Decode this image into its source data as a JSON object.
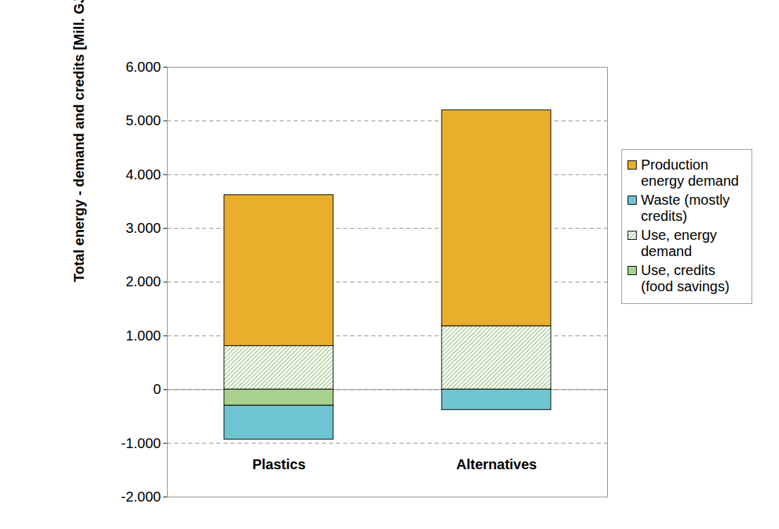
{
  "chart_data": {
    "type": "bar",
    "stacked": true,
    "categories": [
      "Plastics",
      "Alternatives"
    ],
    "ylabel": "Total energy - demand and credits [Mill. GJ/a]",
    "ylim": [
      -2000,
      6000
    ],
    "yticks": [
      {
        "value": -2000,
        "label": "-2.000"
      },
      {
        "value": -1000,
        "label": "-1.000"
      },
      0,
      {
        "value": 1000,
        "label": "1.000"
      },
      {
        "value": 2000,
        "label": "2.000"
      },
      {
        "value": 3000,
        "label": "3.000"
      },
      {
        "value": 4000,
        "label": "4.000"
      },
      {
        "value": 5000,
        "label": "5.000"
      },
      {
        "value": 6000,
        "label": "6.000"
      }
    ],
    "grid": true,
    "legend": "right",
    "series": [
      {
        "name": "Production energy demand",
        "color": "#E8AE2C",
        "values": [
          2810,
          4020
        ]
      },
      {
        "name": "Waste (mostly credits)",
        "color": "#6EC4D0",
        "values": [
          -630,
          -380
        ]
      },
      {
        "name": "Use, energy demand",
        "color": "#9CCB86",
        "values": [
          810,
          1180
        ]
      },
      {
        "name": "Use, credits (food savings)",
        "color": "#A9D18E",
        "values": [
          -300,
          0
        ]
      }
    ]
  }
}
